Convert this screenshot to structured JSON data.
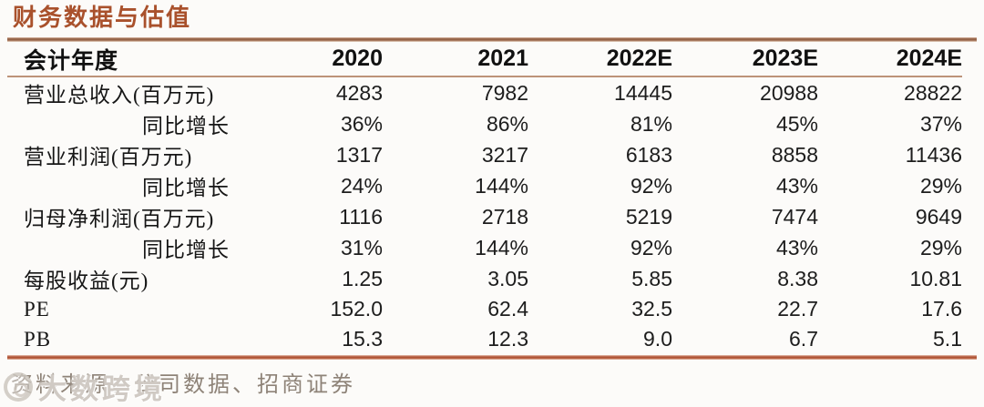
{
  "title": "财务数据与估值",
  "colors": {
    "accent_brown": "#a9512c",
    "rule_top": "#8f5d43",
    "rule_bottom": "#ad4f31",
    "header_underline": "#bd9379",
    "text_black": "#1d1d1d",
    "source_gray": "#8e8378",
    "watermark_gray": "#c4bdb5",
    "background": "#fcfbf9"
  },
  "table": {
    "header": [
      "会计年度",
      "2020",
      "2021",
      "2022E",
      "2023E",
      "2024E"
    ],
    "rows": [
      {
        "label": "营业总收入(百万元)",
        "indent": false,
        "values": [
          "4283",
          "7982",
          "14445",
          "20988",
          "28822"
        ]
      },
      {
        "label": "同比增长",
        "indent": true,
        "values": [
          "36%",
          "86%",
          "81%",
          "45%",
          "37%"
        ]
      },
      {
        "label": "营业利润(百万元)",
        "indent": false,
        "values": [
          "1317",
          "3217",
          "6183",
          "8858",
          "11436"
        ]
      },
      {
        "label": "同比增长",
        "indent": true,
        "values": [
          "24%",
          "144%",
          "92%",
          "43%",
          "29%"
        ]
      },
      {
        "label": "归母净利润(百万元)",
        "indent": false,
        "values": [
          "1116",
          "2718",
          "5219",
          "7474",
          "9649"
        ]
      },
      {
        "label": "同比增长",
        "indent": true,
        "values": [
          "31%",
          "144%",
          "92%",
          "43%",
          "29%"
        ]
      },
      {
        "label": "每股收益(元)",
        "indent": false,
        "values": [
          "1.25",
          "3.05",
          "5.85",
          "8.38",
          "10.81"
        ]
      },
      {
        "label": "PE",
        "indent": false,
        "values": [
          "152.0",
          "62.4",
          "32.5",
          "22.7",
          "17.6"
        ]
      },
      {
        "label": "PB",
        "indent": false,
        "values": [
          "15.3",
          "12.3",
          "9.0",
          "6.7",
          "5.1"
        ]
      }
    ]
  },
  "footer": {
    "source": "资料来源：公司数据、招商证券"
  },
  "watermark": {
    "text": "大数跨境"
  }
}
